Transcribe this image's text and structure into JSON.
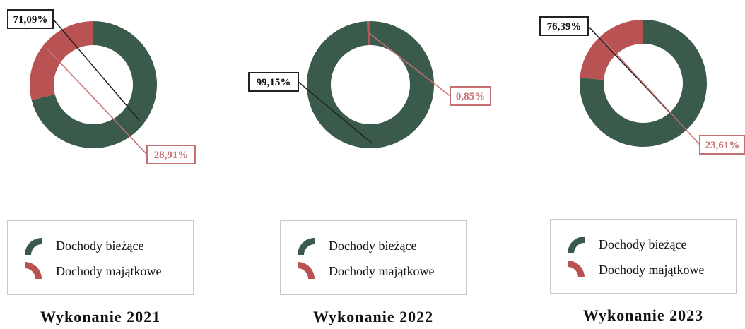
{
  "colors": {
    "biezace": "#3a5a4b",
    "majatkowe": "#b95252",
    "label_dark": "#222222",
    "label_red": "#c57070"
  },
  "icons": {
    "legend_swatch": "ring-segment-icon"
  },
  "chart_data": [
    {
      "type": "pie",
      "title": "Wykonanie 2021",
      "series": [
        {
          "name": "Dochody bieżące",
          "value": 71.09,
          "label": "71,09%"
        },
        {
          "name": "Dochody majątkowe",
          "value": 28.91,
          "label": "28,91%"
        }
      ],
      "legend": [
        "Dochody bieżące",
        "Dochody majątkowe"
      ],
      "legend_placement": "bottom"
    },
    {
      "type": "pie",
      "title": "Wykonanie 2022",
      "series": [
        {
          "name": "Dochody bieżące",
          "value": 99.15,
          "label": "99,15%"
        },
        {
          "name": "Dochody majątkowe",
          "value": 0.85,
          "label": "0,85%"
        }
      ],
      "legend": [
        "Dochody bieżące",
        "Dochody majątkowe"
      ],
      "legend_placement": "bottom"
    },
    {
      "type": "pie",
      "title": "Wykonanie 2023",
      "series": [
        {
          "name": "Dochody bieżące",
          "value": 76.39,
          "label": "76,39%"
        },
        {
          "name": "Dochody majątkowe",
          "value": 23.61,
          "label": "23,61%"
        }
      ],
      "legend": [
        "Dochody bieżące",
        "Dochody majątkowe"
      ],
      "legend_placement": "bottom"
    }
  ]
}
